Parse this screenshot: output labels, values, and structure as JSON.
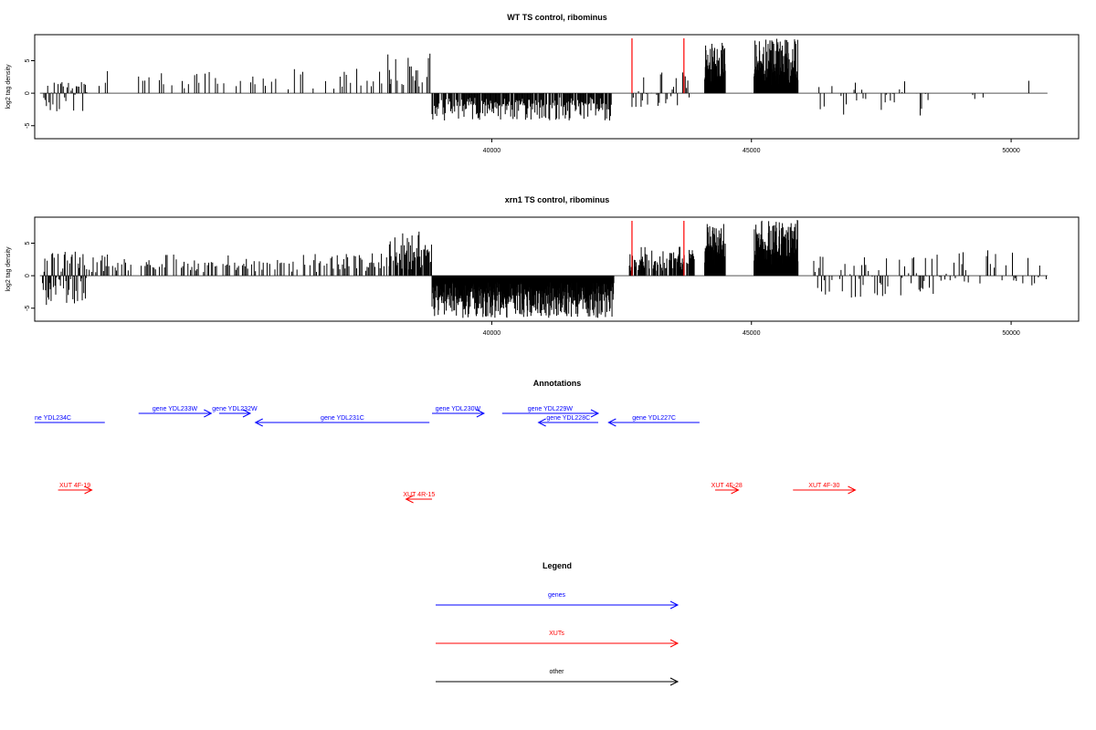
{
  "chart_data": [
    {
      "type": "bar",
      "title": "WT TS control, ribominus",
      "ylabel": "log2 tag density",
      "xlabel": "",
      "xlim": [
        31200,
        51300
      ],
      "ylim": [
        -7,
        9
      ],
      "xticks": [
        40000,
        45000,
        50000
      ],
      "xtick_labels": [
        "40000",
        "45000",
        "50000"
      ],
      "yticks": [
        -5,
        0,
        5
      ],
      "ytick_labels": [
        "-5",
        "0",
        "5"
      ],
      "baseline": {
        "start": 31300,
        "end": 50700
      },
      "marker_lines": {
        "positions": [
          42700,
          43700
        ],
        "color": "#ff0000"
      },
      "grid": false,
      "regions": [
        {
          "start": 31350,
          "end": 32200,
          "seed": 11,
          "min": -3.2,
          "max": 2.2,
          "density": 0.9,
          "step": 25
        },
        {
          "start": 32400,
          "end": 38800,
          "seed": 12,
          "min": 0,
          "max": 3.8,
          "density": 0.28,
          "step": 40
        },
        {
          "start": 38000,
          "end": 38850,
          "seed": 13,
          "min": 0,
          "max": 6.5,
          "density": 0.6,
          "step": 30
        },
        {
          "start": 38850,
          "end": 42300,
          "seed": 14,
          "min": -4.2,
          "max": 0,
          "density": 0.9,
          "step": 15
        },
        {
          "start": 42700,
          "end": 43800,
          "seed": 15,
          "min": -2.2,
          "max": 3.2,
          "density": 0.55,
          "step": 25
        },
        {
          "start": 44100,
          "end": 44500,
          "seed": 16,
          "min": 0,
          "max": 7.8,
          "density": 1.0,
          "step": 6
        },
        {
          "start": 45050,
          "end": 45900,
          "seed": 17,
          "min": 0,
          "max": 8.5,
          "density": 1.0,
          "step": 6
        },
        {
          "start": 46200,
          "end": 48400,
          "seed": 18,
          "min": -3.5,
          "max": 2.6,
          "density": 0.45,
          "step": 25
        },
        {
          "start": 48500,
          "end": 50700,
          "seed": 19,
          "min": -1.2,
          "max": 2.0,
          "density": 0.08,
          "step": 40
        }
      ]
    },
    {
      "type": "bar",
      "title": "xrn1 TS control, ribominus",
      "ylabel": "log2 tag density",
      "xlabel": "",
      "xlim": [
        31200,
        51300
      ],
      "ylim": [
        -7,
        9
      ],
      "xticks": [
        40000,
        45000,
        50000
      ],
      "xtick_labels": [
        "40000",
        "45000",
        "50000"
      ],
      "yticks": [
        -5,
        0,
        5
      ],
      "ytick_labels": [
        "-5",
        "0",
        "5"
      ],
      "baseline": {
        "start": 31300,
        "end": 50700
      },
      "marker_lines": {
        "positions": [
          42700,
          43700
        ],
        "color": "#ff0000"
      },
      "grid": false,
      "regions": [
        {
          "start": 31350,
          "end": 32200,
          "seed": 21,
          "min": -4.5,
          "max": 3.8,
          "density": 1.0,
          "step": 15
        },
        {
          "start": 32200,
          "end": 38800,
          "seed": 22,
          "min": 0,
          "max": 3.5,
          "density": 0.55,
          "step": 25
        },
        {
          "start": 38000,
          "end": 38850,
          "seed": 23,
          "min": 0,
          "max": 7.0,
          "density": 0.8,
          "step": 15
        },
        {
          "start": 38850,
          "end": 42350,
          "seed": 24,
          "min": -6.5,
          "max": 0,
          "density": 1.0,
          "step": 7
        },
        {
          "start": 42650,
          "end": 43900,
          "seed": 25,
          "min": 0,
          "max": 4.5,
          "density": 0.8,
          "step": 12
        },
        {
          "start": 44100,
          "end": 44500,
          "seed": 26,
          "min": 0,
          "max": 8.0,
          "density": 1.0,
          "step": 6
        },
        {
          "start": 45050,
          "end": 45900,
          "seed": 27,
          "min": 0,
          "max": 8.6,
          "density": 1.0,
          "step": 6
        },
        {
          "start": 46200,
          "end": 48500,
          "seed": 28,
          "min": -3.5,
          "max": 3.0,
          "density": 0.5,
          "step": 25
        },
        {
          "start": 48500,
          "end": 50700,
          "seed": 29,
          "min": -1.5,
          "max": 4.5,
          "density": 0.45,
          "step": 25
        }
      ]
    }
  ],
  "annotations": {
    "title": "Annotations",
    "xlim": [
      31200,
      51300
    ],
    "colors": {
      "gene": "#0000ff",
      "xut": "#ff0000",
      "other": "#000000"
    },
    "genes": [
      {
        "label": "ne YDL234C",
        "start": 31200,
        "end": 32550,
        "direction": "none",
        "row": "low"
      },
      {
        "label": "gene YDL233W",
        "start": 33200,
        "end": 34600,
        "direction": "right",
        "row": "high"
      },
      {
        "label": "gene YDL232W",
        "start": 34750,
        "end": 35350,
        "direction": "right",
        "row": "high"
      },
      {
        "label": "gene YDL231C",
        "start": 35450,
        "end": 38800,
        "direction": "left",
        "row": "low"
      },
      {
        "label": "gene YDL230W",
        "start": 38850,
        "end": 39850,
        "direction": "right",
        "row": "high"
      },
      {
        "label": "gene YDL229W",
        "start": 40200,
        "end": 42050,
        "direction": "right",
        "row": "high"
      },
      {
        "label": "gene YDL228C",
        "start": 40900,
        "end": 42050,
        "direction": "left",
        "row": "low"
      },
      {
        "label": "gene YDL227C",
        "start": 42250,
        "end": 44000,
        "direction": "left",
        "row": "low"
      }
    ],
    "xuts": [
      {
        "label": "XUT 4F-19",
        "start": 31650,
        "end": 32300,
        "direction": "right",
        "row": "high"
      },
      {
        "label": "XUT 4R-15",
        "start": 38350,
        "end": 38850,
        "direction": "left",
        "row": "low"
      },
      {
        "label": "XUT 4F-28",
        "start": 44300,
        "end": 44750,
        "direction": "right",
        "row": "high"
      },
      {
        "label": "XUT 4F-30",
        "start": 45800,
        "end": 47000,
        "direction": "right",
        "row": "high"
      }
    ]
  },
  "legend": {
    "title": "Legend",
    "items": [
      {
        "label": "genes",
        "color": "#0000ff"
      },
      {
        "label": "XUTs",
        "color": "#ff0000"
      },
      {
        "label": "other",
        "color": "#000000"
      }
    ]
  }
}
